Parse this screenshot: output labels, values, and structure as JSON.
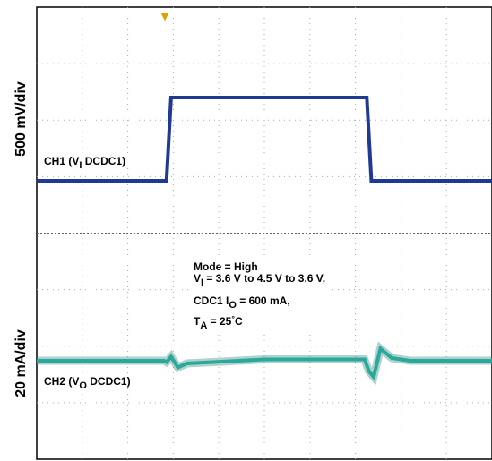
{
  "chart_data": {
    "type": "line",
    "ylabel_top": "500 mV/div",
    "ylabel_bottom": "20 mA/div",
    "divisions": {
      "x": 10,
      "y": 8
    },
    "trigger_marker": "▼",
    "ch1": {
      "label": "CH1 (V",
      "label_sub": "I",
      "label_tail": " DCDC1)",
      "color": "#1f3a93",
      "unit": "V",
      "x": [
        0,
        2.85,
        2.95,
        7.25,
        7.35,
        10
      ],
      "values": [
        3.6,
        3.6,
        4.5,
        4.5,
        3.6,
        3.6
      ]
    },
    "ch2": {
      "label": "CH2 (V",
      "label_sub": "O",
      "label_tail": " DCDC1)",
      "color": "#2aa89a",
      "x": [
        0,
        2.8,
        2.85,
        2.95,
        3.1,
        3.3,
        5.0,
        7.0,
        7.2,
        7.3,
        7.4,
        7.55,
        7.8,
        8.2,
        10
      ],
      "values": [
        0,
        0,
        -0.05,
        0.15,
        -0.25,
        -0.1,
        0.05,
        0.05,
        0.05,
        -0.4,
        -0.6,
        0.45,
        0.1,
        0.0,
        0.0
      ]
    },
    "annotation": {
      "line1": "Mode = High",
      "line2_pre": "V",
      "line2_sub": "I",
      "line2_post": " = 3.6 V to 4.5 V to 3.6 V,",
      "line3_pre": "CDC1 I",
      "line3_sub": "O",
      "line3_post": " = 600 mA,",
      "line4_pre": "T",
      "line4_sub": "A",
      "line4_mid": " = 25",
      "line4_sup": "°",
      "line4_post": "C"
    }
  }
}
